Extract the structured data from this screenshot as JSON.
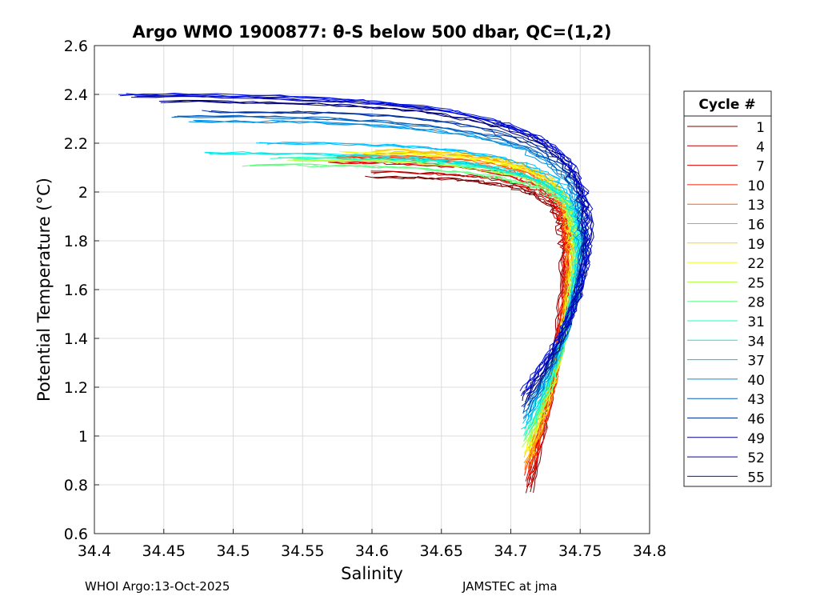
{
  "chart_data": {
    "type": "line",
    "title": "Argo WMO 1900877: θ-S below 500 dbar,  QC=(1,2)",
    "xlabel": "Salinity",
    "ylabel": "Potential Temperature (°C)",
    "xlim": [
      34.4,
      34.8
    ],
    "ylim": [
      0.6,
      2.6
    ],
    "xticks": [
      "34.4",
      "34.45",
      "34.5",
      "34.55",
      "34.6",
      "34.65",
      "34.7",
      "34.75",
      "34.8"
    ],
    "yticks": [
      "0.6",
      "0.8",
      "1",
      "1.2",
      "1.4",
      "1.6",
      "1.8",
      "2",
      "2.2",
      "2.4",
      "2.6"
    ],
    "grid": true,
    "legend": {
      "title": "Cycle #",
      "placement": "right-outside"
    },
    "series": [
      {
        "name": "1",
        "color": "#800000",
        "start": [
          34.6,
          2.06
        ]
      },
      {
        "name": "4",
        "color": "#c00000",
        "start": [
          34.6,
          2.08
        ]
      },
      {
        "name": "7",
        "color": "#e00000",
        "start": [
          34.57,
          2.12
        ]
      },
      {
        "name": "10",
        "color": "#ff2000",
        "start": [
          34.57,
          2.14
        ]
      },
      {
        "name": "13",
        "color": "#ff6000",
        "start": [
          34.58,
          2.15
        ]
      },
      {
        "name": "16",
        "color": "#ff9800",
        "start": [
          34.6,
          2.16
        ]
      },
      {
        "name": "19",
        "color": "#ffd000",
        "start": [
          34.6,
          2.17
        ]
      },
      {
        "name": "22",
        "color": "#f0ff10",
        "start": [
          34.58,
          2.16
        ]
      },
      {
        "name": "25",
        "color": "#b0ff40",
        "start": [
          34.54,
          2.13
        ]
      },
      {
        "name": "28",
        "color": "#60ff80",
        "start": [
          34.51,
          2.11
        ]
      },
      {
        "name": "31",
        "color": "#20ffc0",
        "start": [
          34.53,
          2.14
        ]
      },
      {
        "name": "34",
        "color": "#00e8e8",
        "start": [
          34.48,
          2.16
        ]
      },
      {
        "name": "37",
        "color": "#00c0ff",
        "start": [
          34.52,
          2.2
        ]
      },
      {
        "name": "40",
        "color": "#0090e0",
        "start": [
          34.47,
          2.29
        ]
      },
      {
        "name": "43",
        "color": "#0060c0",
        "start": [
          34.46,
          2.31
        ]
      },
      {
        "name": "46",
        "color": "#0030a0",
        "start": [
          34.48,
          2.33
        ]
      },
      {
        "name": "49",
        "color": "#000080",
        "start": [
          34.45,
          2.37
        ]
      },
      {
        "name": "52",
        "color": "#0000b0",
        "start": [
          34.43,
          2.39
        ]
      },
      {
        "name": "55",
        "color": "#0010e0",
        "start": [
          34.42,
          2.4
        ]
      }
    ]
  },
  "footer": {
    "left": "WHOI Argo:13-Oct-2025",
    "right": "JAMSTEC at jma"
  }
}
